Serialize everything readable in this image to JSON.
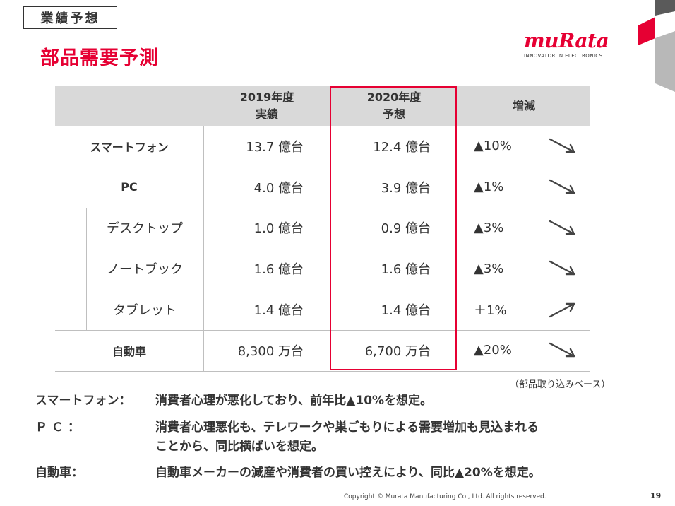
{
  "header": {
    "section_tag": "業績予想",
    "title": "部品需要予測",
    "logo_word": "muRata",
    "logo_tagline": "INNOVATOR IN ELECTRONICS"
  },
  "colors": {
    "accent": "#e60033",
    "header_bg": "#d9d9d9",
    "text": "#333333",
    "grid": "#bfbfbf"
  },
  "chart_data": {
    "type": "table",
    "columns": [
      {
        "line1": "",
        "line2": ""
      },
      {
        "line1": "2019年度",
        "line2": "実績"
      },
      {
        "line1": "2020年度",
        "line2": "予想"
      },
      {
        "line1": "増減",
        "line2": ""
      }
    ],
    "rows": [
      {
        "label": "スマートフォン",
        "sub": false,
        "fy2019": "13.7 億台",
        "fy2020": "12.4 億台",
        "change": "▲10%",
        "trend": "down"
      },
      {
        "label": "PC",
        "sub": false,
        "fy2019": "4.0 億台",
        "fy2020": "3.9 億台",
        "change": "▲1%",
        "trend": "down"
      },
      {
        "label": "デスクトップ",
        "sub": true,
        "fy2019": "1.0 億台",
        "fy2020": "0.9 億台",
        "change": "▲3%",
        "trend": "down"
      },
      {
        "label": "ノートブック",
        "sub": true,
        "fy2019": "1.6 億台",
        "fy2020": "1.6 億台",
        "change": "▲3%",
        "trend": "down"
      },
      {
        "label": "タブレット",
        "sub": true,
        "fy2019": "1.4 億台",
        "fy2020": "1.4 億台",
        "change": "＋1%",
        "trend": "up"
      },
      {
        "label": "自動車",
        "sub": false,
        "fy2019": "8,300 万台",
        "fy2020": "6,700 万台",
        "change": "▲20%",
        "trend": "down"
      }
    ],
    "highlighted_column": "2020年度 予想",
    "note": "（部品取り込みベース）"
  },
  "comments": [
    {
      "label": "スマートフォン：",
      "lines": [
        "消費者心理が悪化しており、前年比▲10%を想定。"
      ]
    },
    {
      "label": "ＰＣ：",
      "lines": [
        "消費者心理悪化も、テレワークや巣ごもりによる需要増加も見込まれる",
        "ことから、同比横ばいを想定。"
      ]
    },
    {
      "label": "自動車：",
      "lines": [
        "自動車メーカーの減産や消費者の買い控えにより、同比▲20%を想定。"
      ]
    }
  ],
  "footer": {
    "copyright": "Copyright © Murata Manufacturing Co., Ltd. All rights reserved.",
    "page_number": "19"
  }
}
